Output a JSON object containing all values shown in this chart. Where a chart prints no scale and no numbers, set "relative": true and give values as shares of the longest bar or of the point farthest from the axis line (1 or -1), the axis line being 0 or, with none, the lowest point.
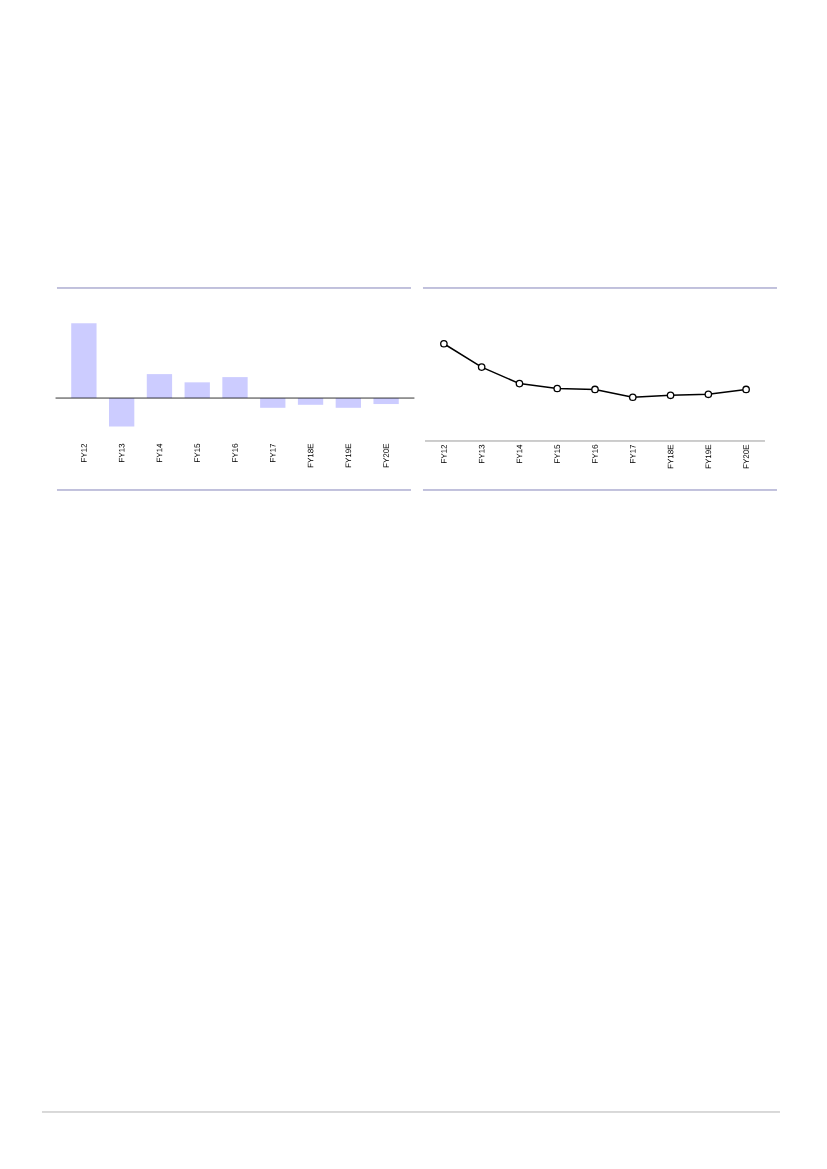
{
  "chart_data": [
    {
      "type": "bar",
      "categories": [
        "FY12",
        "FY13",
        "FY14",
        "FY15",
        "FY16",
        "FY17",
        "FY18E",
        "FY19E",
        "FY20E"
      ],
      "values": [
        1,
        -0.38,
        0.32,
        0.21,
        0.28,
        -0.13,
        -0.09,
        -0.13,
        -0.08
      ],
      "color": "#ccccff",
      "relative": true
    },
    {
      "type": "line",
      "categories": [
        "FY12",
        "FY13",
        "FY14",
        "FY15",
        "FY16",
        "FY17",
        "FY18E",
        "FY19E",
        "FY20E"
      ],
      "values": [
        1,
        0.76,
        0.59,
        0.54,
        0.53,
        0.45,
        0.47,
        0.48,
        0.53
      ],
      "color": "#000000",
      "relative": true,
      "marker": "circle"
    }
  ]
}
